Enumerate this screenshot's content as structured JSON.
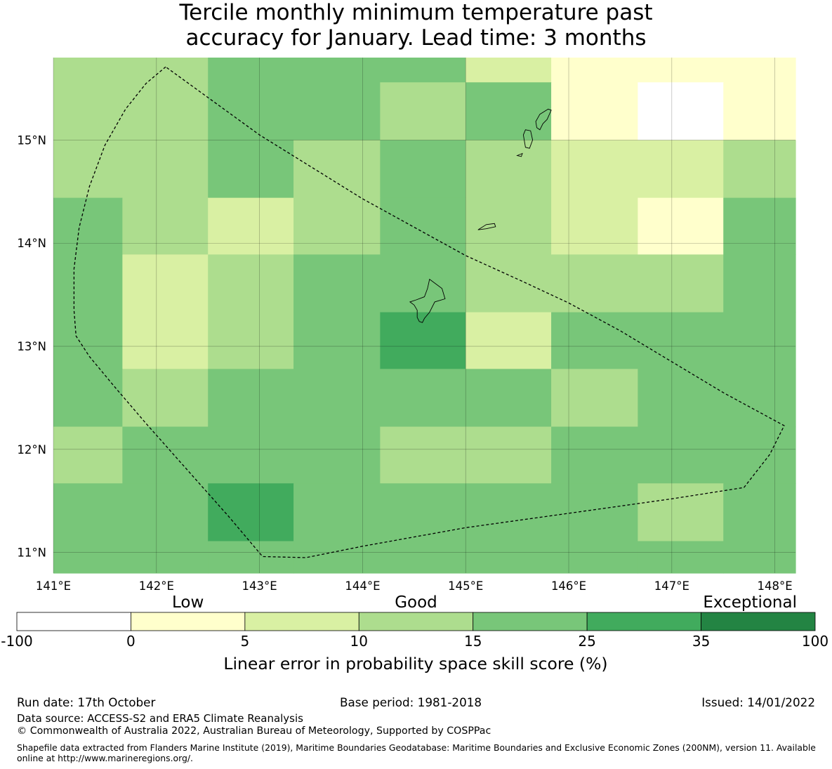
{
  "title": {
    "line1": "Tercile monthly minimum temperature past",
    "line2": "accuracy for January. Lead time: 3 months"
  },
  "map": {
    "lon_range": [
      141.0,
      148.2
    ],
    "lat_range": [
      10.8,
      15.8
    ],
    "x_ticks": [
      {
        "value": 141,
        "label": "141°E"
      },
      {
        "value": 142,
        "label": "142°E"
      },
      {
        "value": 143,
        "label": "143°E"
      },
      {
        "value": 144,
        "label": "144°E"
      },
      {
        "value": 145,
        "label": "145°E"
      },
      {
        "value": 146,
        "label": "146°E"
      },
      {
        "value": 147,
        "label": "147°E"
      },
      {
        "value": 148,
        "label": "148°E"
      }
    ],
    "y_ticks": [
      {
        "value": 15,
        "label": "15°N"
      },
      {
        "value": 14,
        "label": "14°N"
      },
      {
        "value": 13,
        "label": "13°N"
      },
      {
        "value": 12,
        "label": "12°N"
      },
      {
        "value": 11,
        "label": "11°N"
      }
    ],
    "grid": true,
    "skill_grid_cells": [
      {
        "lon0": 141.0,
        "lon1": 142.5,
        "lat0": 15.0,
        "lat1": 15.8,
        "cls": 3
      },
      {
        "lon0": 142.5,
        "lon1": 145.0,
        "lat0": 15.56,
        "lat1": 15.8,
        "cls": 4
      },
      {
        "lon0": 145.0,
        "lon1": 145.83,
        "lat0": 15.56,
        "lat1": 15.8,
        "cls": 2
      },
      {
        "lon0": 145.83,
        "lon1": 148.2,
        "lat0": 15.56,
        "lat1": 15.8,
        "cls": 1
      },
      {
        "lon0": 142.5,
        "lon1": 144.17,
        "lat0": 15.0,
        "lat1": 15.56,
        "cls": 4
      },
      {
        "lon0": 144.17,
        "lon1": 145.0,
        "lat0": 15.0,
        "lat1": 15.56,
        "cls": 3
      },
      {
        "lon0": 145.0,
        "lon1": 145.83,
        "lat0": 15.0,
        "lat1": 15.56,
        "cls": 4
      },
      {
        "lon0": 145.83,
        "lon1": 146.67,
        "lat0": 15.0,
        "lat1": 15.56,
        "cls": 1
      },
      {
        "lon0": 146.67,
        "lon1": 147.5,
        "lat0": 15.0,
        "lat1": 15.56,
        "cls": 0
      },
      {
        "lon0": 147.5,
        "lon1": 148.2,
        "lat0": 15.0,
        "lat1": 15.56,
        "cls": 1
      },
      {
        "lon0": 141.0,
        "lon1": 142.5,
        "lat0": 14.44,
        "lat1": 15.0,
        "cls": 3
      },
      {
        "lon0": 142.5,
        "lon1": 143.33,
        "lat0": 14.44,
        "lat1": 15.0,
        "cls": 4
      },
      {
        "lon0": 143.33,
        "lon1": 144.17,
        "lat0": 14.44,
        "lat1": 15.0,
        "cls": 3
      },
      {
        "lon0": 144.17,
        "lon1": 145.0,
        "lat0": 14.44,
        "lat1": 15.0,
        "cls": 4
      },
      {
        "lon0": 145.0,
        "lon1": 145.83,
        "lat0": 14.44,
        "lat1": 15.0,
        "cls": 3
      },
      {
        "lon0": 145.83,
        "lon1": 147.5,
        "lat0": 14.44,
        "lat1": 15.0,
        "cls": 2
      },
      {
        "lon0": 147.5,
        "lon1": 148.2,
        "lat0": 14.44,
        "lat1": 15.0,
        "cls": 3
      },
      {
        "lon0": 141.0,
        "lon1": 141.67,
        "lat0": 13.89,
        "lat1": 14.44,
        "cls": 4
      },
      {
        "lon0": 141.67,
        "lon1": 142.5,
        "lat0": 13.89,
        "lat1": 14.44,
        "cls": 3
      },
      {
        "lon0": 142.5,
        "lon1": 143.33,
        "lat0": 13.89,
        "lat1": 14.44,
        "cls": 2
      },
      {
        "lon0": 143.33,
        "lon1": 144.17,
        "lat0": 13.89,
        "lat1": 14.44,
        "cls": 3
      },
      {
        "lon0": 144.17,
        "lon1": 145.0,
        "lat0": 13.89,
        "lat1": 14.44,
        "cls": 4
      },
      {
        "lon0": 145.0,
        "lon1": 145.83,
        "lat0": 13.89,
        "lat1": 14.44,
        "cls": 3
      },
      {
        "lon0": 145.83,
        "lon1": 146.67,
        "lat0": 13.89,
        "lat1": 14.44,
        "cls": 2
      },
      {
        "lon0": 146.67,
        "lon1": 147.5,
        "lat0": 13.89,
        "lat1": 14.44,
        "cls": 1
      },
      {
        "lon0": 147.5,
        "lon1": 148.2,
        "lat0": 13.89,
        "lat1": 14.44,
        "cls": 4
      },
      {
        "lon0": 141.0,
        "lon1": 141.67,
        "lat0": 12.78,
        "lat1": 13.89,
        "cls": 4
      },
      {
        "lon0": 141.67,
        "lon1": 142.5,
        "lat0": 12.78,
        "lat1": 13.89,
        "cls": 2
      },
      {
        "lon0": 142.5,
        "lon1": 143.33,
        "lat0": 12.78,
        "lat1": 13.89,
        "cls": 3
      },
      {
        "lon0": 143.33,
        "lon1": 145.0,
        "lat0": 13.33,
        "lat1": 13.89,
        "cls": 4
      },
      {
        "lon0": 145.0,
        "lon1": 147.5,
        "lat0": 13.33,
        "lat1": 13.89,
        "cls": 3
      },
      {
        "lon0": 147.5,
        "lon1": 148.2,
        "lat0": 13.33,
        "lat1": 13.89,
        "cls": 4
      },
      {
        "lon0": 143.33,
        "lon1": 144.17,
        "lat0": 12.78,
        "lat1": 13.33,
        "cls": 4
      },
      {
        "lon0": 144.17,
        "lon1": 145.0,
        "lat0": 12.78,
        "lat1": 13.33,
        "cls": 5
      },
      {
        "lon0": 145.0,
        "lon1": 145.83,
        "lat0": 12.78,
        "lat1": 13.33,
        "cls": 2
      },
      {
        "lon0": 145.83,
        "lon1": 148.2,
        "lat0": 12.78,
        "lat1": 13.33,
        "cls": 4
      },
      {
        "lon0": 141.0,
        "lon1": 141.67,
        "lat0": 12.22,
        "lat1": 12.78,
        "cls": 4
      },
      {
        "lon0": 141.67,
        "lon1": 142.5,
        "lat0": 12.22,
        "lat1": 12.78,
        "cls": 3
      },
      {
        "lon0": 142.5,
        "lon1": 145.83,
        "lat0": 12.22,
        "lat1": 12.78,
        "cls": 4
      },
      {
        "lon0": 145.83,
        "lon1": 146.67,
        "lat0": 12.22,
        "lat1": 12.78,
        "cls": 3
      },
      {
        "lon0": 146.67,
        "lon1": 148.2,
        "lat0": 12.22,
        "lat1": 12.78,
        "cls": 4
      },
      {
        "lon0": 141.0,
        "lon1": 141.67,
        "lat0": 11.67,
        "lat1": 12.22,
        "cls": 3
      },
      {
        "lon0": 141.67,
        "lon1": 144.17,
        "lat0": 11.67,
        "lat1": 12.22,
        "cls": 4
      },
      {
        "lon0": 144.17,
        "lon1": 145.83,
        "lat0": 11.67,
        "lat1": 12.22,
        "cls": 3
      },
      {
        "lon0": 145.83,
        "lon1": 148.2,
        "lat0": 11.67,
        "lat1": 12.22,
        "cls": 4
      },
      {
        "lon0": 141.0,
        "lon1": 142.5,
        "lat0": 10.8,
        "lat1": 11.67,
        "cls": 4
      },
      {
        "lon0": 142.5,
        "lon1": 143.33,
        "lat0": 11.11,
        "lat1": 11.67,
        "cls": 5
      },
      {
        "lon0": 142.5,
        "lon1": 143.33,
        "lat0": 10.8,
        "lat1": 11.11,
        "cls": 4
      },
      {
        "lon0": 143.33,
        "lon1": 146.67,
        "lat0": 10.8,
        "lat1": 11.67,
        "cls": 4
      },
      {
        "lon0": 146.67,
        "lon1": 147.5,
        "lat0": 11.11,
        "lat1": 11.67,
        "cls": 3
      },
      {
        "lon0": 146.67,
        "lon1": 147.5,
        "lat0": 10.8,
        "lat1": 11.11,
        "cls": 4
      },
      {
        "lon0": 147.5,
        "lon1": 148.2,
        "lat0": 10.8,
        "lat1": 11.67,
        "cls": 4
      }
    ],
    "eez_boundary": [
      [
        142.09,
        15.71
      ],
      [
        141.9,
        15.55
      ],
      [
        141.7,
        15.3
      ],
      [
        141.5,
        14.95
      ],
      [
        141.35,
        14.55
      ],
      [
        141.25,
        14.15
      ],
      [
        141.2,
        13.75
      ],
      [
        141.2,
        13.35
      ],
      [
        141.22,
        13.1
      ],
      [
        141.35,
        12.9
      ],
      [
        141.6,
        12.6
      ],
      [
        141.9,
        12.25
      ],
      [
        142.3,
        11.8
      ],
      [
        142.7,
        11.35
      ],
      [
        143.03,
        10.96
      ],
      [
        143.45,
        10.95
      ],
      [
        144.0,
        11.06
      ],
      [
        145.0,
        11.24
      ],
      [
        146.0,
        11.38
      ],
      [
        147.0,
        11.52
      ],
      [
        147.7,
        11.63
      ],
      [
        147.95,
        11.95
      ],
      [
        148.09,
        12.23
      ],
      [
        147.5,
        12.55
      ],
      [
        147.0,
        12.85
      ],
      [
        146.5,
        13.15
      ],
      [
        146.0,
        13.42
      ],
      [
        145.55,
        13.63
      ],
      [
        145.0,
        13.88
      ],
      [
        144.0,
        14.43
      ],
      [
        143.0,
        15.05
      ],
      [
        142.09,
        15.71
      ]
    ],
    "islands": [
      {
        "name": "Guam",
        "coords": [
          [
            144.65,
            13.65
          ],
          [
            144.77,
            13.56
          ],
          [
            144.8,
            13.46
          ],
          [
            144.7,
            13.43
          ],
          [
            144.65,
            13.33
          ],
          [
            144.6,
            13.27
          ],
          [
            144.58,
            13.23
          ],
          [
            144.55,
            13.24
          ],
          [
            144.53,
            13.28
          ],
          [
            144.53,
            13.35
          ],
          [
            144.5,
            13.4
          ],
          [
            144.46,
            13.43
          ],
          [
            144.52,
            13.45
          ],
          [
            144.6,
            13.48
          ],
          [
            144.63,
            13.56
          ],
          [
            144.65,
            13.65
          ]
        ]
      },
      {
        "name": "Rota",
        "coords": [
          [
            145.12,
            14.13
          ],
          [
            145.2,
            14.18
          ],
          [
            145.28,
            14.19
          ],
          [
            145.29,
            14.16
          ],
          [
            145.2,
            14.14
          ],
          [
            145.12,
            14.13
          ]
        ]
      },
      {
        "name": "Saipan",
        "coords": [
          [
            145.68,
            15.18
          ],
          [
            145.72,
            15.25
          ],
          [
            145.8,
            15.3
          ],
          [
            145.83,
            15.29
          ],
          [
            145.79,
            15.2
          ],
          [
            145.75,
            15.16
          ],
          [
            145.72,
            15.1
          ],
          [
            145.69,
            15.12
          ],
          [
            145.68,
            15.18
          ]
        ]
      },
      {
        "name": "Tinian",
        "coords": [
          [
            145.56,
            15.05
          ],
          [
            145.58,
            15.1
          ],
          [
            145.63,
            15.09
          ],
          [
            145.65,
            15.0
          ],
          [
            145.62,
            14.92
          ],
          [
            145.58,
            14.93
          ],
          [
            145.56,
            15.05
          ]
        ]
      },
      {
        "name": "Aguijan",
        "coords": [
          [
            145.5,
            14.85
          ],
          [
            145.55,
            14.87
          ],
          [
            145.54,
            14.84
          ],
          [
            145.5,
            14.85
          ]
        ]
      }
    ]
  },
  "colorbar": {
    "category_labels": [
      "Low",
      "Good",
      "Exceptional"
    ],
    "tick_labels": [
      "-100",
      "0",
      "5",
      "10",
      "15",
      "25",
      "35",
      "100"
    ],
    "colors": [
      "#ffffff",
      "#ffffcc",
      "#d9f0a3",
      "#addd8e",
      "#78c679",
      "#41ab5d",
      "#238443"
    ],
    "title": "Linear error in probability space skill score (%)"
  },
  "footer": {
    "run_date": "Run date: 17th October",
    "base_period": "Base period: 1981-2018",
    "issued": "Issued: 14/01/2022",
    "data_source": "Data source: ACCESS-S2 and ERA5 Climate Reanalysis",
    "copyright": "© Commonwealth of Australia 2022, Australian Bureau of Meteorology, Supported by COSPPac",
    "shapefile": "Shapefile data extracted from Flanders Marine Institute (2019), Maritime Boundaries Geodatabase: Maritime Boundaries and Exclusive Economic Zones (200NM), version 11. Available online at http://www.marineregions.org/."
  }
}
